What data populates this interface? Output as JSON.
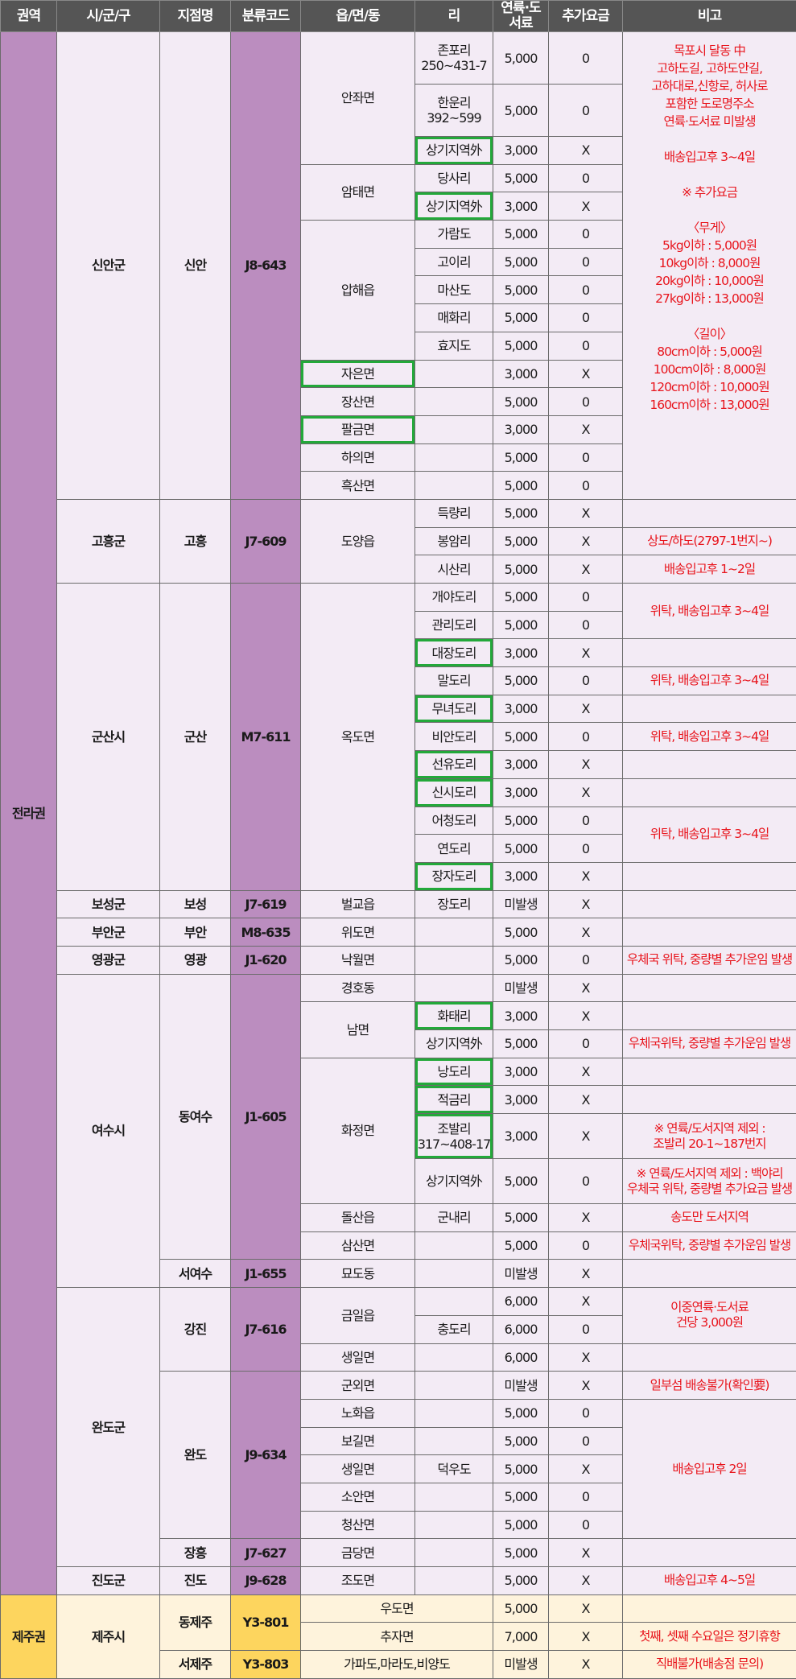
{
  "headers": [
    "권역",
    "시/군/구",
    "지점명",
    "분류코드",
    "읍/면/동",
    "리",
    "연륙·도서료",
    "추가요금",
    "비고"
  ],
  "colors": {
    "header_bg": "#555555",
    "region_purple": "#bb8dbf",
    "cell_bg": "#f3ebf5",
    "jeju_yellow": "#fdd55e",
    "jeju_bg": "#fef3dc",
    "note_red": "#e8141c",
    "highlight_green": "#23a83a"
  },
  "rows": [
    {
      "r": "전라권",
      "r_rs": 53,
      "c": "신안군",
      "c_rs": 15,
      "b": "신안",
      "b_rs": 15,
      "k": "J8-643",
      "k_rs": 15,
      "t": "안좌면",
      "t_rs": 3,
      "ri": "존포리\n250~431-7",
      "fee": "5,000",
      "extra": "0",
      "note": "목포시 달동 中\n고하도길, 고하도안길,\n고하대로,신항로, 허사로\n포함한 도로명주소\n연륙·도서료 미발생\n\n배송입고후 3~4일\n\n※ 추가요금\n\n〈무게〉\n5kg이하 : 5,000원\n10kg이하 : 8,000원\n20kg이하 : 10,000원\n27kg이하 : 13,000원\n\n〈길이〉\n80cm이하 : 5,000원\n100cm이하 : 8,000원\n120cm이하 : 10,000원\n160cm이하 : 13,000원",
      "note_rs": 15
    },
    {
      "ri": "한운리\n392~599",
      "fee": "5,000",
      "extra": "0"
    },
    {
      "ri": "상기지역外",
      "ri_hl": true,
      "fee": "3,000",
      "extra": "X"
    },
    {
      "t": "암태면",
      "t_rs": 2,
      "ri": "당사리",
      "fee": "5,000",
      "extra": "0"
    },
    {
      "ri": "상기지역外",
      "ri_hl": true,
      "fee": "3,000",
      "extra": "X"
    },
    {
      "t": "압해읍",
      "t_rs": 5,
      "ri": "가람도",
      "fee": "5,000",
      "extra": "0"
    },
    {
      "ri": "고이리",
      "fee": "5,000",
      "extra": "0"
    },
    {
      "ri": "마산도",
      "fee": "5,000",
      "extra": "0"
    },
    {
      "ri": "매화리",
      "fee": "5,000",
      "extra": "0"
    },
    {
      "ri": "효지도",
      "fee": "5,000",
      "extra": "0"
    },
    {
      "t": "자은면",
      "t_hl": true,
      "ri": "",
      "fee": "3,000",
      "extra": "X"
    },
    {
      "t": "장산면",
      "ri": "",
      "fee": "5,000",
      "extra": "0"
    },
    {
      "t": "팔금면",
      "t_hl": true,
      "ri": "",
      "fee": "3,000",
      "extra": "X"
    },
    {
      "t": "하의면",
      "ri": "",
      "fee": "5,000",
      "extra": "0"
    },
    {
      "t": "흑산면",
      "ri": "",
      "fee": "5,000",
      "extra": "0"
    },
    {
      "c": "고흥군",
      "c_rs": 3,
      "b": "고흥",
      "b_rs": 3,
      "k": "J7-609",
      "k_rs": 3,
      "t": "도양읍",
      "t_rs": 3,
      "ri": "득량리",
      "fee": "5,000",
      "extra": "X",
      "note": ""
    },
    {
      "ri": "봉암리",
      "fee": "5,000",
      "extra": "X",
      "note": "상도/하도(2797-1번지~)"
    },
    {
      "ri": "시산리",
      "fee": "5,000",
      "extra": "X",
      "note": "배송입고후 1~2일"
    },
    {
      "c": "군산시",
      "c_rs": 11,
      "b": "군산",
      "b_rs": 11,
      "k": "M7-611",
      "k_rs": 11,
      "t": "옥도면",
      "t_rs": 11,
      "ri": "개야도리",
      "fee": "5,000",
      "extra": "0",
      "note": "위탁, 배송입고후 3~4일",
      "note_rs": 2
    },
    {
      "ri": "관리도리",
      "fee": "5,000",
      "extra": "0"
    },
    {
      "ri": "대장도리",
      "ri_hl": true,
      "fee": "3,000",
      "extra": "X",
      "note": ""
    },
    {
      "ri": "말도리",
      "fee": "5,000",
      "extra": "0",
      "note": "위탁, 배송입고후 3~4일"
    },
    {
      "ri": "무녀도리",
      "ri_hl": true,
      "fee": "3,000",
      "extra": "X",
      "note": ""
    },
    {
      "ri": "비안도리",
      "fee": "5,000",
      "extra": "0",
      "note": "위탁, 배송입고후 3~4일"
    },
    {
      "ri": "선유도리",
      "ri_hl": true,
      "fee": "3,000",
      "extra": "X",
      "note": ""
    },
    {
      "ri": "신시도리",
      "ri_hl": true,
      "fee": "3,000",
      "extra": "X",
      "note": ""
    },
    {
      "ri": "어청도리",
      "fee": "5,000",
      "extra": "0",
      "note": "위탁, 배송입고후 3~4일",
      "note_rs": 2
    },
    {
      "ri": "연도리",
      "fee": "5,000",
      "extra": "0"
    },
    {
      "ri": "장자도리",
      "ri_hl": true,
      "fee": "3,000",
      "extra": "X",
      "note": ""
    },
    {
      "c": "보성군",
      "b": "보성",
      "k": "J7-619",
      "t": "벌교읍",
      "ri": "장도리",
      "fee": "미발생",
      "extra": "X",
      "note": ""
    },
    {
      "c": "부안군",
      "b": "부안",
      "k": "M8-635",
      "t": "위도면",
      "ri": "",
      "fee": "5,000",
      "extra": "X",
      "note": ""
    },
    {
      "c": "영광군",
      "b": "영광",
      "k": "J1-620",
      "t": "낙월면",
      "ri": "",
      "fee": "5,000",
      "extra": "0",
      "note": "우체국 위탁, 중량별 추가운임 발생"
    },
    {
      "c": "여수시",
      "c_rs": 10,
      "b": "동여수",
      "b_rs": 9,
      "k": "J1-605",
      "k_rs": 9,
      "t": "경호동",
      "ri": "",
      "fee": "미발생",
      "extra": "X",
      "note": ""
    },
    {
      "t": "남면",
      "t_rs": 2,
      "ri": "화태리",
      "ri_hl": true,
      "fee": "3,000",
      "extra": "X",
      "note": ""
    },
    {
      "ri": "상기지역外",
      "fee": "5,000",
      "extra": "0",
      "note": "우체국위탁, 중량별 추가운임 발생"
    },
    {
      "t": "화정면",
      "t_rs": 4,
      "ri": "낭도리",
      "ri_hl": true,
      "fee": "3,000",
      "extra": "X",
      "note": ""
    },
    {
      "ri": "적금리",
      "ri_hl": true,
      "fee": "3,000",
      "extra": "X",
      "note": ""
    },
    {
      "ri": "조발리\n317~408-17",
      "ri_hl": true,
      "fee": "3,000",
      "extra": "X",
      "note": "※ 연륙/도서지역 제외 :\n조발리 20-1~187번지"
    },
    {
      "ri": "상기지역外",
      "fee": "5,000",
      "extra": "0",
      "note": "※ 연륙/도서지역 제외 : 백야리\n우체국 위탁, 중량별 추가요금 발생"
    },
    {
      "t": "돌산읍",
      "ri": "군내리",
      "fee": "5,000",
      "extra": "X",
      "note": "송도만 도서지역"
    },
    {
      "t": "삼산면",
      "ri": "",
      "fee": "5,000",
      "extra": "0",
      "note": "우체국위탁, 중량별 추가운임 발생"
    },
    {
      "b": "서여수",
      "k": "J1-655",
      "t": "묘도동",
      "ri": "",
      "fee": "미발생",
      "extra": "X",
      "note": ""
    },
    {
      "c": "완도군",
      "c_rs": 10,
      "b": "강진",
      "b_rs": 3,
      "k": "J7-616",
      "k_rs": 3,
      "t": "금일읍",
      "t_rs": 2,
      "ri": "",
      "fee": "6,000",
      "extra": "X",
      "note": "이중연륙·도서료\n건당 3,000원",
      "note_rs": 2
    },
    {
      "ri": "충도리",
      "fee": "6,000",
      "extra": "0"
    },
    {
      "t": "생일면",
      "ri": "",
      "fee": "6,000",
      "extra": "X",
      "note": ""
    },
    {
      "b": "완도",
      "b_rs": 6,
      "k": "J9-634",
      "k_rs": 6,
      "t": "군외면",
      "ri": "",
      "fee": "미발생",
      "extra": "X",
      "note": "일부섬 배송불가(확인要)"
    },
    {
      "t": "노화읍",
      "ri": "",
      "fee": "5,000",
      "extra": "0",
      "note": "배송입고후 2일",
      "note_rs": 5
    },
    {
      "t": "보길면",
      "ri": "",
      "fee": "5,000",
      "extra": "0"
    },
    {
      "t": "생일면",
      "ri": "덕우도",
      "fee": "5,000",
      "extra": "X"
    },
    {
      "t": "소안면",
      "ri": "",
      "fee": "5,000",
      "extra": "0"
    },
    {
      "t": "청산면",
      "ri": "",
      "fee": "5,000",
      "extra": "0"
    },
    {
      "b": "장흥",
      "k": "J7-627",
      "t": "금당면",
      "ri": "",
      "fee": "5,000",
      "extra": "X",
      "note": ""
    },
    {
      "c": "진도군",
      "b": "진도",
      "k": "J9-628",
      "t": "조도면",
      "ri": "",
      "fee": "5,000",
      "extra": "X",
      "note": "배송입고후 4~5일"
    },
    {
      "jeju": true,
      "r": "제주권",
      "r_rs": 3,
      "c": "제주시",
      "c_rs": 3,
      "b": "동제주",
      "b_rs": 2,
      "k": "Y3-801",
      "k_rs": 2,
      "t": "우도면",
      "t_cs": 2,
      "fee": "5,000",
      "extra": "X",
      "note": ""
    },
    {
      "jeju": true,
      "t": "추자면",
      "t_cs": 2,
      "fee": "7,000",
      "extra": "X",
      "note": "첫째, 셋째 수요일은 정기휴항"
    },
    {
      "jeju": true,
      "b": "서제주",
      "k": "Y3-803",
      "t": "가파도,마라도,비양도",
      "t_cs": 2,
      "fee": "미발생",
      "extra": "X",
      "note": "직배불가(배송점 문의)"
    }
  ]
}
